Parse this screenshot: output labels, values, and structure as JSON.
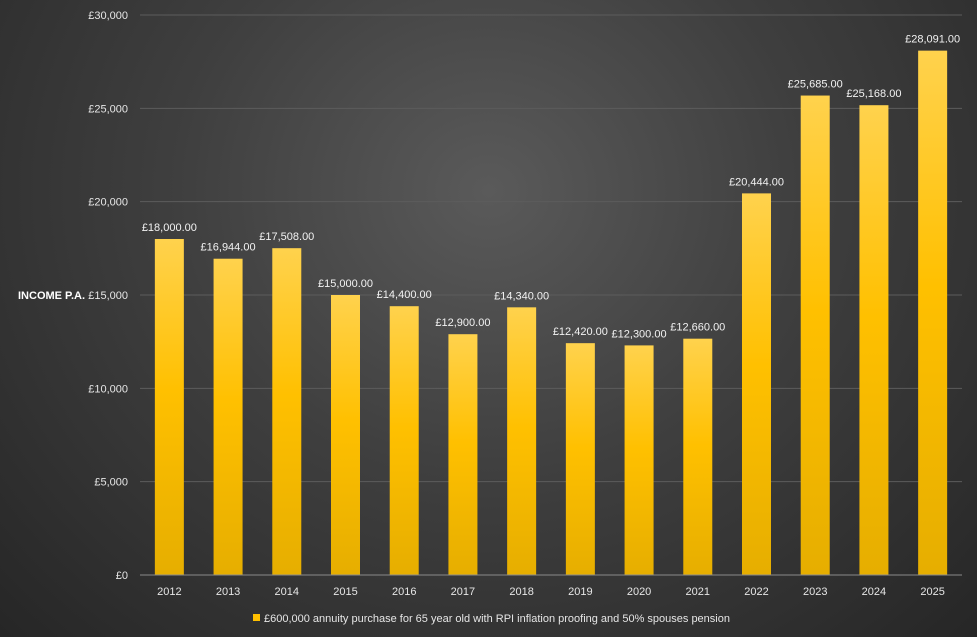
{
  "chart_data": {
    "type": "bar",
    "title": "",
    "xlabel": "",
    "ylabel": "INCOME P.A.",
    "ylim": [
      0,
      30000
    ],
    "ytick_step": 5000,
    "ytick_labels": [
      "£0",
      "£5,000",
      "£10,000",
      "£15,000",
      "£20,000",
      "£25,000",
      "£30,000"
    ],
    "categories": [
      "2012",
      "2013",
      "2014",
      "2015",
      "2016",
      "2017",
      "2018",
      "2019",
      "2020",
      "2021",
      "2022",
      "2023",
      "2024",
      "2025"
    ],
    "values": [
      18000,
      16944,
      17508,
      15000,
      14400,
      12900,
      14340,
      12420,
      12300,
      12660,
      20444,
      25685,
      25168,
      28091
    ],
    "data_labels": [
      "£18,000.00",
      "£16,944.00",
      "£17,508.00",
      "£15,000.00",
      "£14,400.00",
      "£12,900.00",
      "£14,340.00",
      "£12,420.00",
      "£12,300.00",
      "£12,660.00",
      "£20,444.00",
      "£25,685.00",
      "£25,168.00",
      "£28,091.00"
    ],
    "legend": {
      "position": "bottom",
      "label": "£600,000 annuity purchase for 65 year old with RPI inflation proofing and 50% spouses pension"
    },
    "grid": true,
    "colors": {
      "bar_top": "#ffd24d",
      "bar_bottom": "#e6ae00",
      "legend_swatch": "#ffc000",
      "grid": "#5c5c5c"
    }
  }
}
